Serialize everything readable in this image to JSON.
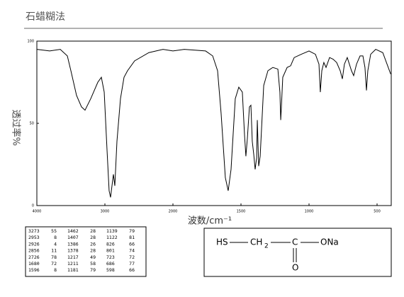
{
  "chart_data": {
    "type": "line",
    "title": "石蜡糊法",
    "x_label": "波数/cm⁻¹",
    "y_label": "透过率%",
    "xlim": [
      4000,
      400
    ],
    "xticks": [
      4000,
      3000,
      2000,
      1500,
      1000,
      500
    ],
    "ylim": [
      0,
      100
    ],
    "yticks": [
      0,
      50,
      100
    ],
    "series": [
      {
        "color": "#000000",
        "x": [
          4000,
          3812,
          3656,
          3552,
          3500,
          3417,
          3344,
          3292,
          3208,
          3104,
          3052,
          3010,
          2969,
          2938,
          2917,
          2896,
          2875,
          2854,
          2823,
          2771,
          2719,
          2667,
          2563,
          2354,
          2146,
          2000,
          1917,
          1760,
          1708,
          1672,
          1646,
          1615,
          1594,
          1573,
          1542,
          1516,
          1490,
          1474,
          1464,
          1453,
          1438,
          1427,
          1417,
          1406,
          1396,
          1385,
          1380,
          1370,
          1359,
          1333,
          1302,
          1266,
          1229,
          1214,
          1208,
          1203,
          1193,
          1161,
          1135,
          1125,
          1109,
          1057,
          1000,
          953,
          927,
          917,
          906,
          891,
          875,
          849,
          823,
          797,
          771,
          755,
          740,
          719,
          688,
          672,
          651,
          625,
          604,
          589,
          578,
          568,
          547,
          510,
          458,
          400
        ],
        "values": [
          95,
          94,
          95,
          91,
          82,
          67,
          60,
          58,
          65,
          75,
          78,
          69,
          34,
          9,
          5,
          12,
          19,
          12,
          39,
          65,
          78,
          82,
          88,
          93,
          95,
          94,
          95,
          94,
          91,
          82,
          56,
          17,
          9,
          22,
          65,
          72,
          69,
          43,
          30,
          41,
          60,
          61,
          39,
          31,
          22,
          29,
          52,
          24,
          30,
          73,
          82,
          84,
          83,
          69,
          52,
          60,
          78,
          84,
          85,
          87,
          90,
          92,
          94,
          92,
          86,
          69,
          82,
          87,
          84,
          90,
          89,
          87,
          82,
          77,
          86,
          90,
          82,
          79,
          86,
          91,
          91,
          84,
          70,
          82,
          92,
          95,
          93,
          80
        ]
      }
    ]
  },
  "peak_table": {
    "rows": [
      [
        3273,
        55,
        1462,
        28,
        1139,
        79
      ],
      [
        2953,
        8,
        1407,
        28,
        1122,
        81
      ],
      [
        2926,
        4,
        1386,
        26,
        826,
        66
      ],
      [
        2856,
        11,
        1378,
        28,
        801,
        74
      ],
      [
        2726,
        78,
        1217,
        49,
        723,
        72
      ],
      [
        1680,
        72,
        1211,
        58,
        686,
        77
      ],
      [
        1596,
        8,
        1181,
        79,
        598,
        66
      ]
    ]
  },
  "structure": {
    "hs": "HS",
    "ch": "CH",
    "sub": "2",
    "c": "C",
    "ona": "ONa",
    "o": "O"
  }
}
